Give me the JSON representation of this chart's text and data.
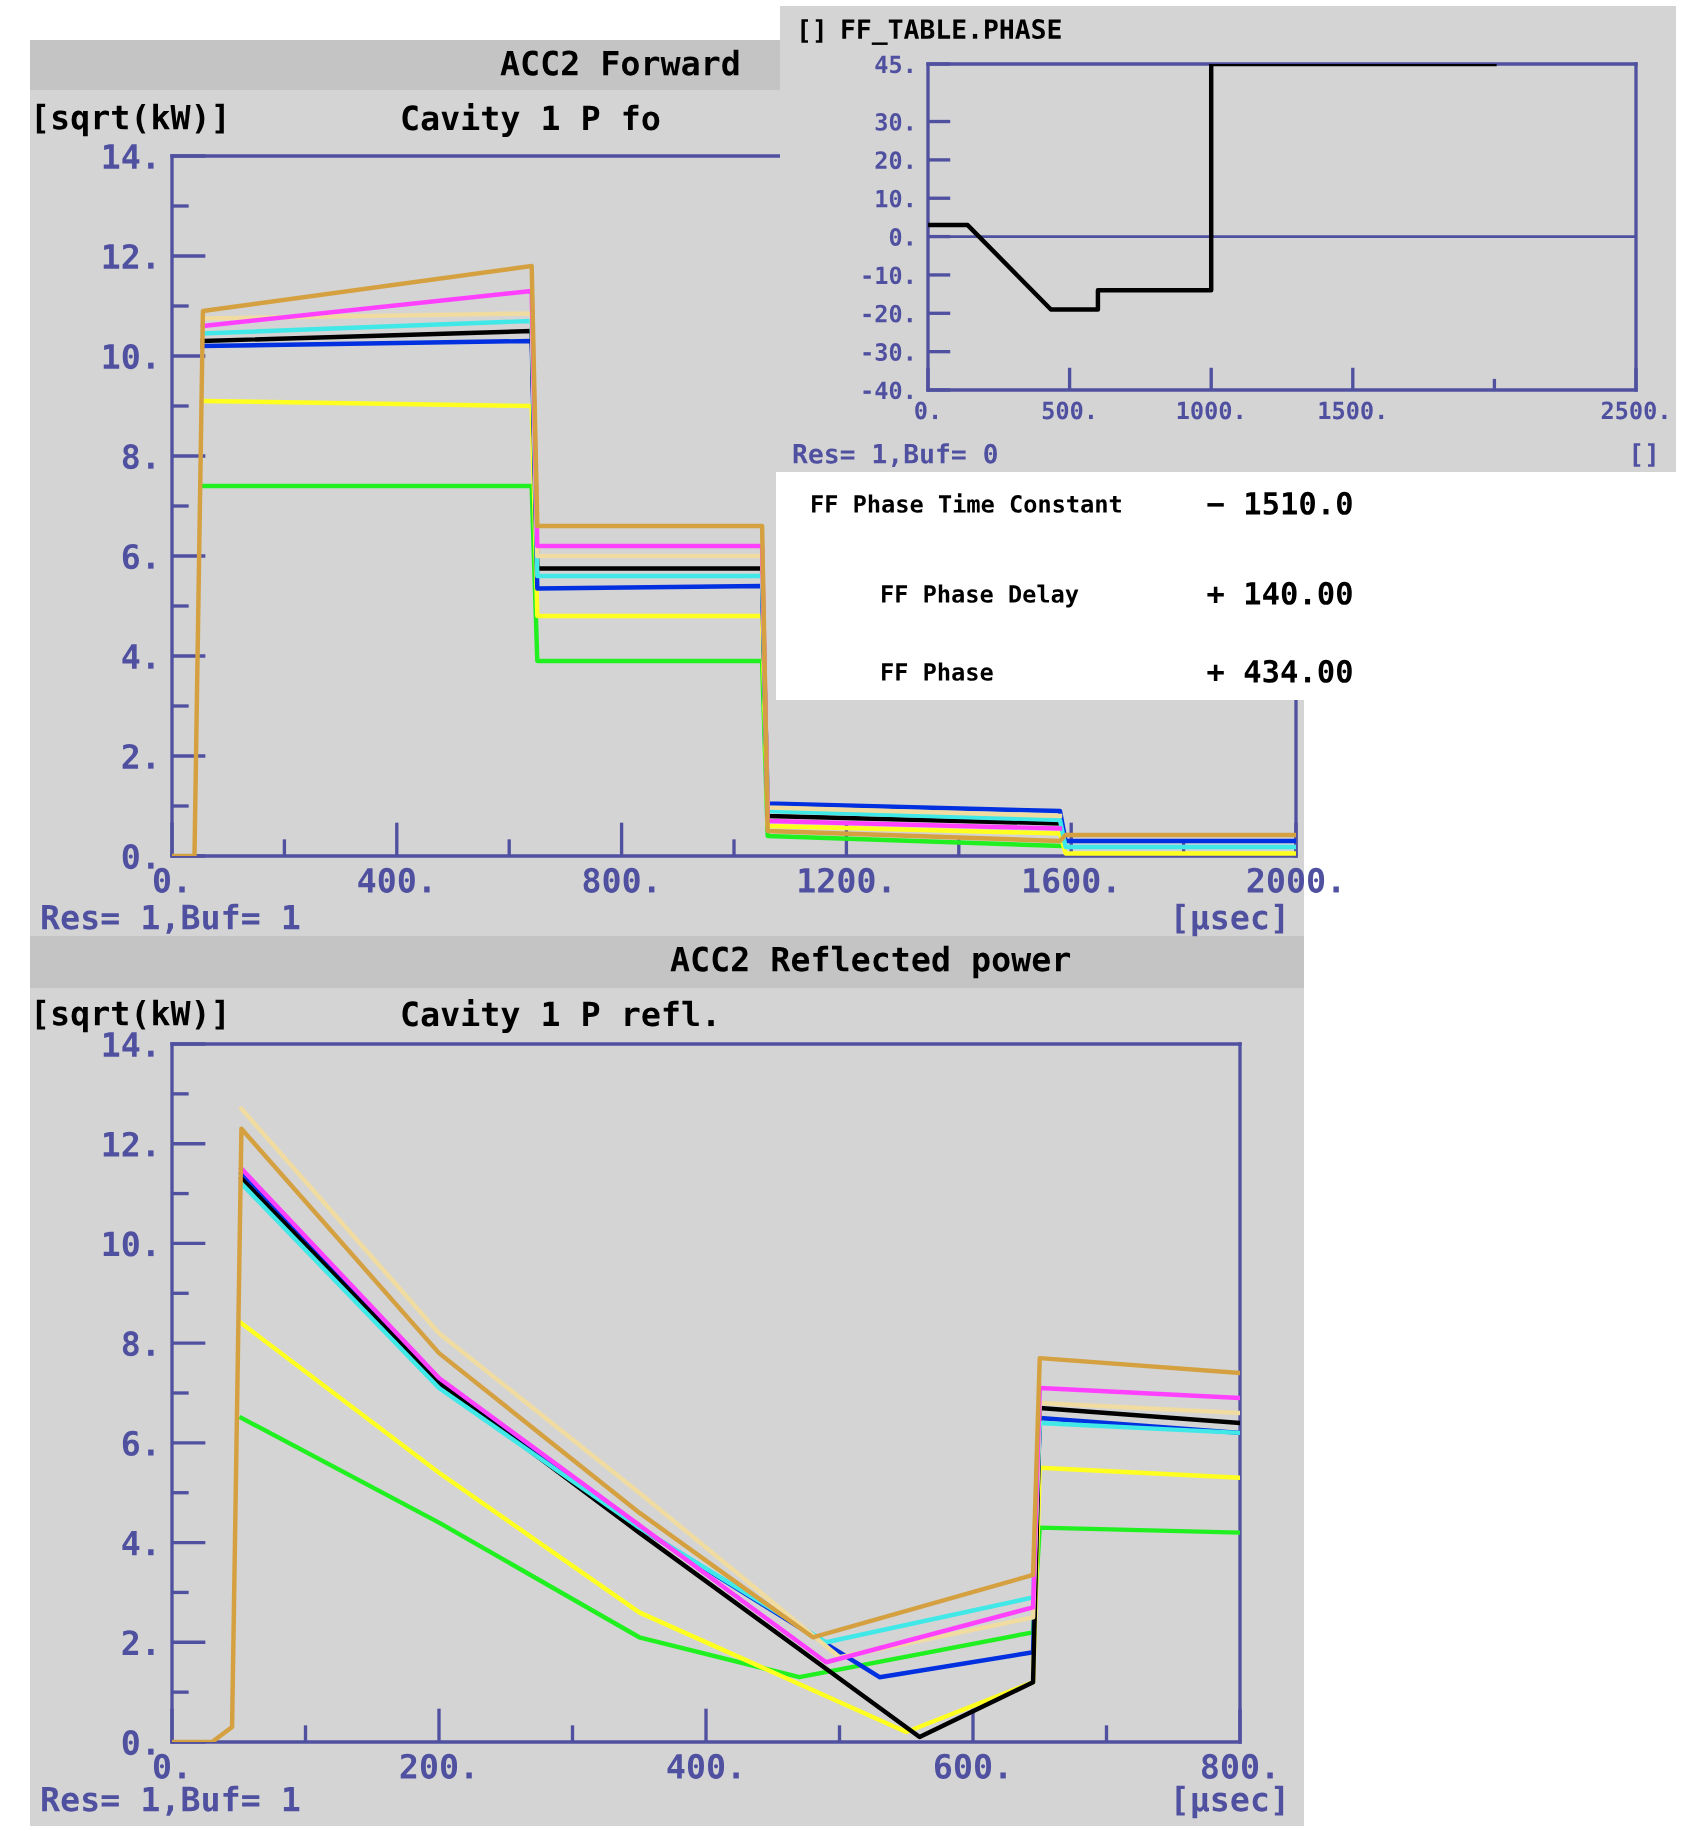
{
  "chart_data": [
    {
      "type": "line",
      "title": "ACC2 Forward",
      "subtitle": "Cavity 1 P fo",
      "ylabel": "[sqrt(kW)]",
      "xlabel": "[µsec]",
      "annotations": [
        "Res= 1,Buf= 1"
      ],
      "x": [
        0,
        40,
        55,
        640,
        650,
        1050,
        1060,
        1580,
        1590,
        2000
      ],
      "series": [
        {
          "color": "#20f020",
          "values": [
            null,
            null,
            7.4,
            7.4,
            3.9,
            3.9,
            0.4,
            0.2,
            null,
            null
          ]
        },
        {
          "color": "#ffff20",
          "values": [
            null,
            null,
            9.1,
            9.0,
            4.8,
            4.8,
            0.6,
            0.45,
            0.05,
            0.05
          ]
        },
        {
          "color": "#0030e0",
          "values": [
            null,
            null,
            10.2,
            10.3,
            5.35,
            5.4,
            1.05,
            0.9,
            0.3,
            0.3
          ]
        },
        {
          "color": "#000000",
          "values": [
            null,
            null,
            10.3,
            10.5,
            5.75,
            5.75,
            0.8,
            0.65,
            null,
            null
          ]
        },
        {
          "color": "#40e8e8",
          "values": [
            null,
            null,
            10.45,
            10.7,
            5.6,
            5.6,
            0.9,
            0.72,
            0.18,
            0.18
          ]
        },
        {
          "color": "#f0dca0",
          "values": [
            null,
            null,
            10.75,
            10.85,
            6.0,
            6.0,
            0.97,
            0.8,
            null,
            null
          ]
        },
        {
          "color": "#ff40ff",
          "values": [
            null,
            null,
            10.6,
            11.3,
            6.2,
            6.2,
            0.7,
            0.55,
            null,
            null
          ]
        },
        {
          "color": "#d4a040",
          "values": [
            0,
            0,
            10.9,
            11.8,
            6.6,
            6.6,
            0.5,
            0.3,
            0.42,
            0.42
          ]
        }
      ],
      "xlim": [
        0,
        2000
      ],
      "xticks": [
        {
          "value": 0,
          "label": "0."
        },
        {
          "value": 200,
          "label": null
        },
        {
          "value": 400,
          "label": "400."
        },
        {
          "value": 600,
          "label": null
        },
        {
          "value": 800,
          "label": "800."
        },
        {
          "value": 1000,
          "label": null
        },
        {
          "value": 1200,
          "label": "1200."
        },
        {
          "value": 1400,
          "label": null
        },
        {
          "value": 1600,
          "label": "1600."
        },
        {
          "value": 1800,
          "label": null
        },
        {
          "value": 2000,
          "label": "2000."
        }
      ],
      "ylim": [
        0,
        14
      ],
      "yticks": [
        {
          "value": 0,
          "label": "0."
        },
        {
          "value": 1,
          "label": null
        },
        {
          "value": 2,
          "label": "2."
        },
        {
          "value": 3,
          "label": null
        },
        {
          "value": 4,
          "label": "4."
        },
        {
          "value": 5,
          "label": null
        },
        {
          "value": 6,
          "label": "6."
        },
        {
          "value": 7,
          "label": null
        },
        {
          "value": 8,
          "label": "8."
        },
        {
          "value": 9,
          "label": null
        },
        {
          "value": 10,
          "label": "10."
        },
        {
          "value": 11,
          "label": null
        },
        {
          "value": 12,
          "label": "12."
        },
        {
          "value": 13,
          "label": null
        },
        {
          "value": 14,
          "label": "14."
        }
      ]
    },
    {
      "type": "line",
      "title": "ACC2 Reflected power",
      "subtitle": "Cavity 1 P refl.",
      "ylabel": "[sqrt(kW)]",
      "xlabel": "[µsec]",
      "annotations": [
        "Res= 1,Buf= 1"
      ],
      "series": [
        {
          "color": "#20f020",
          "x": [
            52,
            200,
            350,
            470,
            645,
            650,
            800
          ],
          "values": [
            6.5,
            4.4,
            2.1,
            1.3,
            2.2,
            4.3,
            4.2
          ]
        },
        {
          "color": "#ffff20",
          "x": [
            52,
            200,
            350,
            550,
            645,
            650,
            800
          ],
          "values": [
            8.4,
            5.4,
            2.6,
            0.2,
            1.2,
            5.5,
            5.3
          ]
        },
        {
          "color": "#0030e0",
          "x": [
            52,
            200,
            350,
            530,
            645,
            650,
            800
          ],
          "values": [
            11.4,
            7.2,
            4.3,
            1.3,
            1.8,
            6.5,
            6.2
          ]
        },
        {
          "color": "#000000",
          "x": [
            52,
            200,
            350,
            560,
            645,
            650,
            800
          ],
          "values": [
            11.3,
            7.2,
            4.2,
            0.1,
            1.2,
            6.7,
            6.4
          ]
        },
        {
          "color": "#40e8e8",
          "x": [
            52,
            200,
            350,
            490,
            645,
            650,
            800
          ],
          "values": [
            11.2,
            7.1,
            4.3,
            2.0,
            2.9,
            6.4,
            6.2
          ]
        },
        {
          "color": "#f0dca0",
          "x": [
            52,
            200,
            350,
            500,
            645,
            650,
            800
          ],
          "values": [
            12.7,
            8.2,
            5.0,
            1.7,
            2.5,
            6.8,
            6.6
          ]
        },
        {
          "color": "#ff40ff",
          "x": [
            52,
            200,
            350,
            490,
            645,
            650,
            800
          ],
          "values": [
            11.5,
            7.3,
            4.35,
            1.6,
            2.7,
            7.1,
            6.9
          ]
        },
        {
          "color": "#d4a040",
          "x": [
            0,
            30,
            45,
            52,
            200,
            350,
            480,
            645,
            650,
            800
          ],
          "values": [
            0,
            0,
            0.3,
            12.3,
            7.8,
            4.6,
            2.1,
            3.35,
            7.7,
            7.4
          ]
        }
      ],
      "xlim": [
        0,
        800
      ],
      "xticks": [
        {
          "value": 0,
          "label": "0."
        },
        {
          "value": 100,
          "label": null
        },
        {
          "value": 200,
          "label": "200."
        },
        {
          "value": 300,
          "label": null
        },
        {
          "value": 400,
          "label": "400."
        },
        {
          "value": 500,
          "label": null
        },
        {
          "value": 600,
          "label": "600."
        },
        {
          "value": 700,
          "label": null
        },
        {
          "value": 800,
          "label": "800."
        }
      ],
      "ylim": [
        0,
        14
      ],
      "yticks": [
        {
          "value": 0,
          "label": "0."
        },
        {
          "value": 1,
          "label": null
        },
        {
          "value": 2,
          "label": "2."
        },
        {
          "value": 3,
          "label": null
        },
        {
          "value": 4,
          "label": "4."
        },
        {
          "value": 5,
          "label": null
        },
        {
          "value": 6,
          "label": "6."
        },
        {
          "value": 7,
          "label": null
        },
        {
          "value": 8,
          "label": "8."
        },
        {
          "value": 9,
          "label": null
        },
        {
          "value": 10,
          "label": "10."
        },
        {
          "value": 11,
          "label": null
        },
        {
          "value": 12,
          "label": "12."
        },
        {
          "value": 13,
          "label": null
        },
        {
          "value": 14,
          "label": "14."
        }
      ]
    },
    {
      "type": "line",
      "title": "FF_TABLE.PHASE",
      "ylabel": "[]",
      "xlabel": "[]",
      "annotations": [
        "Res= 1,Buf= 0"
      ],
      "series": [
        {
          "color": "#000000",
          "x": [
            0,
            140,
            434,
            600,
            600,
            1000,
            1000,
            2000
          ],
          "values": [
            3,
            3,
            -19,
            -19,
            -14,
            -14,
            45,
            45
          ]
        }
      ],
      "ref_lines": [
        {
          "axis": "y",
          "value": 0,
          "color": "#5050a0"
        }
      ],
      "xlim": [
        0,
        2500
      ],
      "xticks": [
        {
          "value": 0,
          "label": "0."
        },
        {
          "value": 500,
          "label": "500."
        },
        {
          "value": 1000,
          "label": "1000."
        },
        {
          "value": 1500,
          "label": "1500."
        },
        {
          "value": 2000,
          "label": null
        },
        {
          "value": 2500,
          "label": "2500."
        }
      ],
      "ylim": [
        -40,
        45
      ],
      "yticks": [
        {
          "value": -40,
          "label": "-40."
        },
        {
          "value": -30,
          "label": "-30."
        },
        {
          "value": -20,
          "label": "-20."
        },
        {
          "value": -10,
          "label": "-10."
        },
        {
          "value": 0,
          "label": "0."
        },
        {
          "value": 10,
          "label": "10."
        },
        {
          "value": 20,
          "label": "20."
        },
        {
          "value": 30,
          "label": "30."
        },
        {
          "value": 45,
          "label": "45."
        }
      ]
    },
    {
      "type": "other",
      "annotations": [
        "FF Phase Time Constant",
        "− 1510.0",
        "FF Phase Delay",
        "+ 140.00",
        "FF Phase",
        "+ 434.00"
      ]
    }
  ]
}
